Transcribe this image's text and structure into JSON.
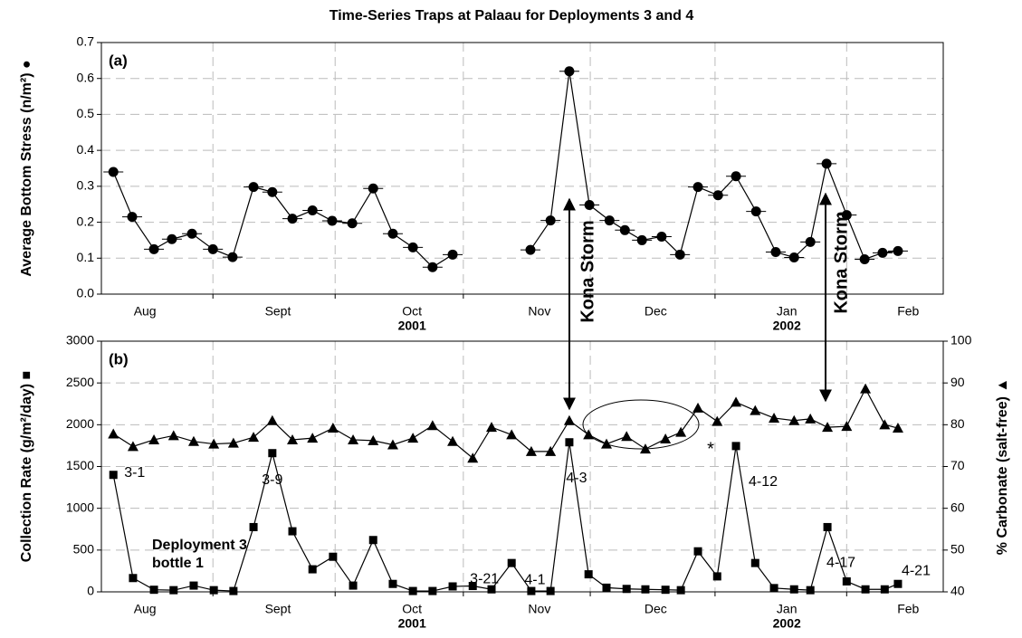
{
  "chart_data": [
    {
      "type": "line",
      "title": "Time-Series Traps at Palaau for Deployments 3 and 4",
      "panel_label": "(a)",
      "y_label": "Average Bottom Stress (n/m²) ●",
      "xlim": [
        0,
        197
      ],
      "xticks": [
        {
          "value": 10.2,
          "label": "Aug"
        },
        {
          "value": 41.3,
          "label": "Sept"
        },
        {
          "value": 72.7,
          "label": "Oct"
        },
        {
          "value": 102.5,
          "label": "Nov"
        },
        {
          "value": 129.7,
          "label": "Dec"
        },
        {
          "value": 160.4,
          "label": "Jan"
        },
        {
          "value": 188.8,
          "label": "Feb"
        }
      ],
      "year_ticks": [
        {
          "value": 72.7,
          "label": "2001"
        },
        {
          "value": 160.4,
          "label": "2002"
        }
      ],
      "xgrid": [
        26.1,
        54.7,
        84.7,
        114.4,
        143.6,
        174.4
      ],
      "ylim": [
        0,
        0.7
      ],
      "yticks": [
        {
          "value": 0,
          "label": "0.0"
        },
        0.1,
        0.2,
        0.3,
        0.4,
        0.5,
        0.6,
        0.7
      ],
      "grid": true,
      "x": [
        2.8,
        7.2,
        12.3,
        16.5,
        21.2,
        26.1,
        30.7,
        35.6,
        40.0,
        44.7,
        49.4,
        54.0,
        58.7,
        63.6,
        68.2,
        72.9,
        77.5,
        82.2,
        91.3,
        100.4,
        105.1,
        109.5,
        114.2,
        118.9,
        122.5,
        126.5,
        131.1,
        135.4,
        139.6,
        144.3,
        148.5,
        153.2,
        157.8,
        162.1,
        165.9,
        169.7,
        174.4,
        178.6,
        182.8,
        186.4
      ],
      "series": [
        {
          "name": "Average Bottom Stress",
          "color": "#000000",
          "marker": "circle",
          "values": [
            0.34,
            0.215,
            0.125,
            0.153,
            0.168,
            0.125,
            0.103,
            0.298,
            0.284,
            0.21,
            0.233,
            0.204,
            0.197,
            0.294,
            0.168,
            0.13,
            0.075,
            0.11,
            null,
            0.123,
            0.205,
            0.62,
            0.248,
            0.205,
            0.178,
            0.15,
            0.16,
            0.11,
            0.298,
            0.275,
            0.328,
            0.23,
            0.117,
            0.102,
            0.145,
            0.363,
            0.22,
            0.097,
            0.115,
            0.12
          ]
        }
      ],
      "annotations": [
        "Kona Storm",
        "Kona Storm"
      ]
    },
    {
      "type": "line",
      "panel_label": "(b)",
      "y_label": "Collection Rate (g/m²/day) ■",
      "y2_label": "% Carbonate (salt-free) ▲",
      "xlim": [
        0,
        197
      ],
      "xticks": [
        {
          "value": 10.2,
          "label": "Aug"
        },
        {
          "value": 41.3,
          "label": "Sept"
        },
        {
          "value": 72.7,
          "label": "Oct"
        },
        {
          "value": 102.5,
          "label": "Nov"
        },
        {
          "value": 129.7,
          "label": "Dec"
        },
        {
          "value": 160.4,
          "label": "Jan"
        },
        {
          "value": 188.8,
          "label": "Feb"
        }
      ],
      "year_ticks": [
        {
          "value": 72.7,
          "label": "2001"
        },
        {
          "value": 160.4,
          "label": "2002"
        }
      ],
      "xgrid": [
        26.1,
        54.7,
        84.7,
        114.4,
        143.6,
        174.4
      ],
      "ylim": [
        0,
        3000
      ],
      "yticks": [
        0,
        500,
        1000,
        1500,
        2000,
        2500,
        3000
      ],
      "y2lim": [
        40,
        100
      ],
      "y2ticks": [
        40,
        50,
        60,
        70,
        80,
        90,
        100
      ],
      "grid": true,
      "x": [
        2.8,
        7.4,
        12.3,
        16.9,
        21.6,
        26.3,
        30.9,
        35.6,
        40.0,
        44.7,
        49.4,
        54.2,
        58.9,
        63.6,
        68.2,
        72.9,
        77.5,
        82.2,
        86.9,
        91.3,
        96.0,
        100.6,
        105.1,
        109.5,
        114.0,
        118.2,
        122.9,
        127.3,
        132.0,
        135.6,
        139.6,
        144.1,
        148.5,
        153.0,
        157.4,
        162.1,
        165.9,
        169.9,
        174.4,
        178.8,
        183.3,
        186.4
      ],
      "series": [
        {
          "name": "Collection Rate",
          "color": "#000000",
          "marker": "square",
          "values": [
            1400,
            165,
            25,
            20,
            75,
            20,
            10,
            775,
            1660,
            725,
            270,
            420,
            75,
            620,
            95,
            10,
            10,
            65,
            70,
            30,
            345,
            10,
            10,
            1790,
            210,
            50,
            35,
            30,
            25,
            20,
            485,
            185,
            1745,
            345,
            45,
            30,
            20,
            775,
            125,
            30,
            30,
            95
          ]
        },
        {
          "name": "% Carbonate",
          "color": "#000000",
          "marker": "triangle",
          "axis": "y2",
          "values": [
            77.8,
            74.8,
            76.4,
            77.4,
            76,
            75.4,
            75.6,
            77,
            81,
            76.4,
            76.8,
            79.2,
            76.4,
            76.2,
            75.2,
            76.8,
            79.8,
            76,
            72,
            79.4,
            77.6,
            73.6,
            73.6,
            81,
            77.6,
            75.4,
            77.2,
            74.2,
            76.6,
            78.2,
            84,
            80.8,
            85.4,
            83.4,
            81.6,
            81,
            81.4,
            79.4,
            79.6,
            88.6,
            80,
            79.2
          ]
        }
      ],
      "point_labels": [
        "3-1",
        "3-9",
        "3-21",
        "4-1",
        "4-3",
        "4-12",
        "4-17",
        "4-21"
      ],
      "annotations": [
        "Deployment 3",
        "bottle 1",
        "*"
      ]
    }
  ]
}
